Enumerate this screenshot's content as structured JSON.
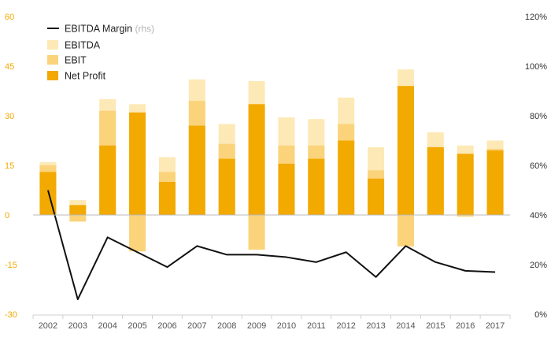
{
  "chart_data": {
    "type": "bar",
    "categories": [
      "2002",
      "2003",
      "2004",
      "2005",
      "2006",
      "2007",
      "2008",
      "2009",
      "2010",
      "2011",
      "2012",
      "2013",
      "2014",
      "2015",
      "2016",
      "2017"
    ],
    "series": [
      {
        "name": "EBITDA",
        "kind": "bar",
        "color": "#fde9b6",
        "values": [
          16,
          4.5,
          35,
          33.5,
          17.5,
          41,
          27.5,
          40.5,
          29.5,
          29,
          35.5,
          20.5,
          44,
          25,
          21,
          22.5
        ]
      },
      {
        "name": "EBIT",
        "kind": "bar",
        "color": "#fad37a",
        "values": [
          15,
          -2,
          31.5,
          -11,
          13,
          34.5,
          21.5,
          -10.5,
          21,
          21,
          27.5,
          13.5,
          -9.5,
          20.5,
          -0.5,
          20
        ]
      },
      {
        "name": "Net Profit",
        "kind": "bar",
        "color": "#f2a900",
        "values": [
          13,
          3,
          21,
          31,
          10,
          27,
          17,
          33.5,
          15.5,
          17,
          22.5,
          11,
          39,
          20.5,
          18.5,
          19.5
        ]
      },
      {
        "name": "EBITDA Margin",
        "note": "(rhs)",
        "kind": "line",
        "axis": "right",
        "color": "#111111",
        "values": [
          50,
          6,
          31,
          25,
          19,
          27.5,
          24,
          24,
          23,
          21,
          25,
          15,
          27.5,
          21,
          17.5,
          17
        ]
      }
    ],
    "legend_order": [
      "EBITDA Margin",
      "EBITDA",
      "EBIT",
      "Net Profit"
    ],
    "legend_position": "top-left",
    "ylim": [
      -30,
      60
    ],
    "yticks": [
      -30,
      -15,
      0,
      15,
      30,
      45,
      60
    ],
    "y2lim": [
      0,
      120
    ],
    "y2ticks": [
      "0%",
      "20%",
      "40%",
      "60%",
      "80%",
      "100%",
      "120%"
    ],
    "grid": false,
    "colors": {
      "left_axis_text": "#f2a900",
      "right_axis_text": "#333333",
      "zero_line": "#bbbbbb"
    }
  }
}
